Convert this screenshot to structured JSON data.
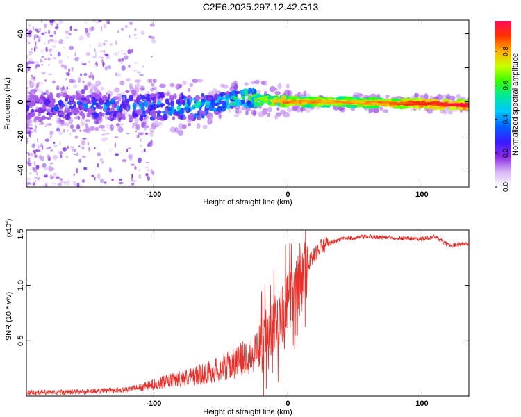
{
  "title": "C2E6.2025.297.12.42.G13",
  "chart_data": [
    {
      "type": "heatmap",
      "name": "spectrogram",
      "xlabel": "Height of straight line (km)",
      "ylabel": "Frequency (Hz)",
      "xlim": [
        -195,
        135
      ],
      "ylim": [
        -50,
        48
      ],
      "xticks": [
        -100,
        0,
        100
      ],
      "yticks": [
        -40,
        -20,
        0,
        20,
        40
      ],
      "colorbar": {
        "label": "Normalized spectral amplitude",
        "range": [
          0.0,
          0.98
        ],
        "ticks": [
          0.0,
          0.2,
          0.4,
          0.6,
          0.8
        ],
        "tick_labels": [
          "0.0",
          "0.2",
          "0.4",
          "0.6",
          "0.8"
        ],
        "colormap": [
          "#ffffff",
          "#d7b3f5",
          "#8a2be2",
          "#3a1aff",
          "#0060ff",
          "#00c8ff",
          "#00e6a0",
          "#33ff00",
          "#c8ff00",
          "#ffb000",
          "#ff3300",
          "#ff0a5a"
        ]
      },
      "ridge": [
        {
          "x": -190,
          "f": -3,
          "amp": 0.2
        },
        {
          "x": -150,
          "f": -3,
          "amp": 0.3
        },
        {
          "x": -110,
          "f": -3,
          "amp": 0.35
        },
        {
          "x": -80,
          "f": -3,
          "amp": 0.4
        },
        {
          "x": -60,
          "f": -2,
          "amp": 0.45
        },
        {
          "x": -40,
          "f": 1,
          "amp": 0.5
        },
        {
          "x": -30,
          "f": 3,
          "amp": 0.55
        },
        {
          "x": -15,
          "f": 1,
          "amp": 0.7
        },
        {
          "x": 0,
          "f": 0,
          "amp": 0.85
        },
        {
          "x": 40,
          "f": 0,
          "amp": 0.8
        },
        {
          "x": 80,
          "f": -1,
          "amp": 0.85
        },
        {
          "x": 100,
          "f": -1,
          "amp": 0.95
        },
        {
          "x": 135,
          "f": -2,
          "amp": 0.95
        }
      ]
    },
    {
      "type": "line",
      "name": "snr",
      "xlabel": "Height of straight line (km)",
      "ylabel": "SNR (10 * v/v)",
      "multiplier": "(x10",
      "multiplier_exp": "4",
      "xlim": [
        -195,
        135
      ],
      "ylim": [
        0,
        1.5
      ],
      "xticks": [
        -100,
        0,
        100
      ],
      "yticks": [
        0.5,
        1.0,
        1.5
      ],
      "ytick_labels": [
        "0.5",
        "1.0",
        "1.5"
      ],
      "color": "#e8302a",
      "envelope": [
        {
          "x": -195,
          "y": 0.02
        },
        {
          "x": -150,
          "y": 0.03
        },
        {
          "x": -120,
          "y": 0.05
        },
        {
          "x": -100,
          "y": 0.1
        },
        {
          "x": -80,
          "y": 0.15
        },
        {
          "x": -60,
          "y": 0.2
        },
        {
          "x": -40,
          "y": 0.28
        },
        {
          "x": -25,
          "y": 0.38
        },
        {
          "x": -15,
          "y": 0.55
        },
        {
          "x": -5,
          "y": 0.75
        },
        {
          "x": 5,
          "y": 0.95
        },
        {
          "x": 15,
          "y": 1.2
        },
        {
          "x": 25,
          "y": 1.35
        },
        {
          "x": 40,
          "y": 1.42
        },
        {
          "x": 60,
          "y": 1.44
        },
        {
          "x": 80,
          "y": 1.43
        },
        {
          "x": 100,
          "y": 1.42
        },
        {
          "x": 110,
          "y": 1.44
        },
        {
          "x": 120,
          "y": 1.36
        },
        {
          "x": 135,
          "y": 1.38
        }
      ]
    }
  ]
}
